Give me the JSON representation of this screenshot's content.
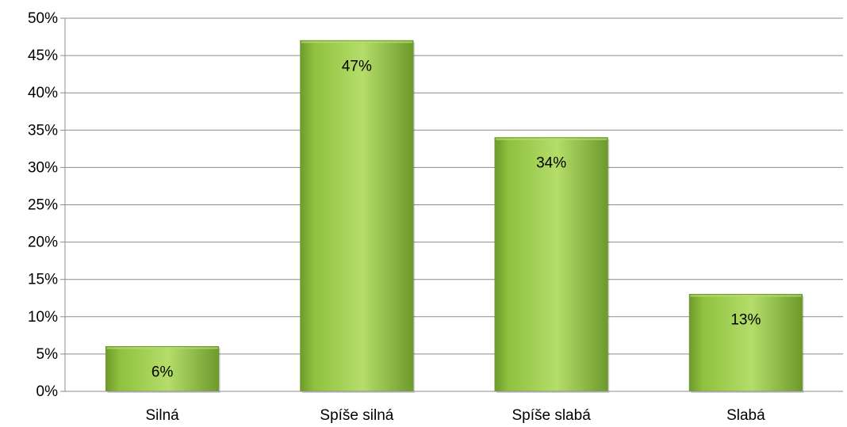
{
  "chart_data": {
    "type": "bar",
    "title": "",
    "xlabel": "",
    "ylabel": "",
    "categories": [
      "Silná",
      "Spíše silná",
      "Spíše slabá",
      "Slabá"
    ],
    "values": [
      6,
      47,
      34,
      13
    ],
    "data_labels": [
      "6%",
      "47%",
      "34%",
      "13%"
    ],
    "ylim": [
      0,
      50
    ],
    "y_ticks": [
      0,
      5,
      10,
      15,
      20,
      25,
      30,
      35,
      40,
      45,
      50
    ],
    "y_tick_labels": [
      "0%",
      "5%",
      "10%",
      "15%",
      "20%",
      "25%",
      "30%",
      "35%",
      "40%",
      "45%",
      "50%"
    ],
    "grid": true,
    "legend": "none",
    "bar_color": "#8fc13e",
    "bar_color_light": "#b4dd6a",
    "bar_color_dark": "#6e9a2c"
  }
}
